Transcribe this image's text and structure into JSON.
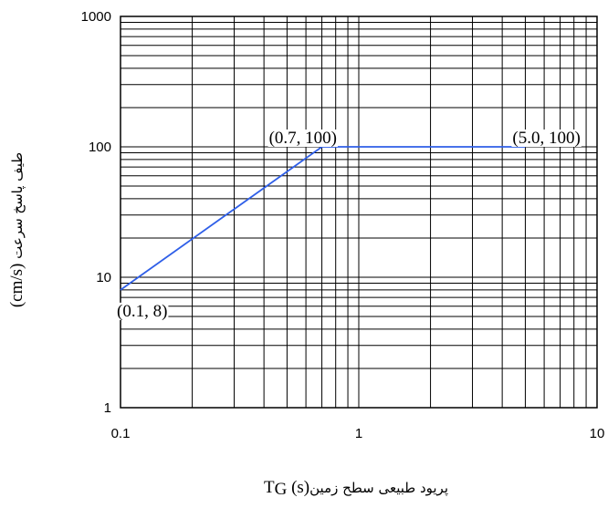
{
  "chart_data": {
    "type": "line",
    "x_scale": "log",
    "y_scale": "log",
    "xlim": [
      0.1,
      10
    ],
    "ylim": [
      1,
      1000
    ],
    "grid": true,
    "x_ticks": [
      "0.1",
      "1",
      "10"
    ],
    "y_ticks": [
      "1",
      "10",
      "100",
      "1000"
    ],
    "series": [
      {
        "color": "#2f5fe8",
        "x": [
          0.1,
          0.7,
          5.0
        ],
        "y": [
          8,
          100,
          100
        ]
      }
    ],
    "annotations": [
      {
        "text": "(0.1, 8)",
        "x": 0.1,
        "y": 8
      },
      {
        "text": "(0.7, 100)",
        "x": 0.7,
        "y": 100
      },
      {
        "text": "(5.0, 100)",
        "x": 5.0,
        "y": 100
      }
    ],
    "xlabel": {
      "persian": "پریود طبیعی سطح زمین",
      "unit": "(s)",
      "symbol": "T",
      "subscript": "G"
    },
    "ylabel": {
      "persian": "طیف پاسخ سرعت",
      "unit": "(cm/s)"
    }
  }
}
